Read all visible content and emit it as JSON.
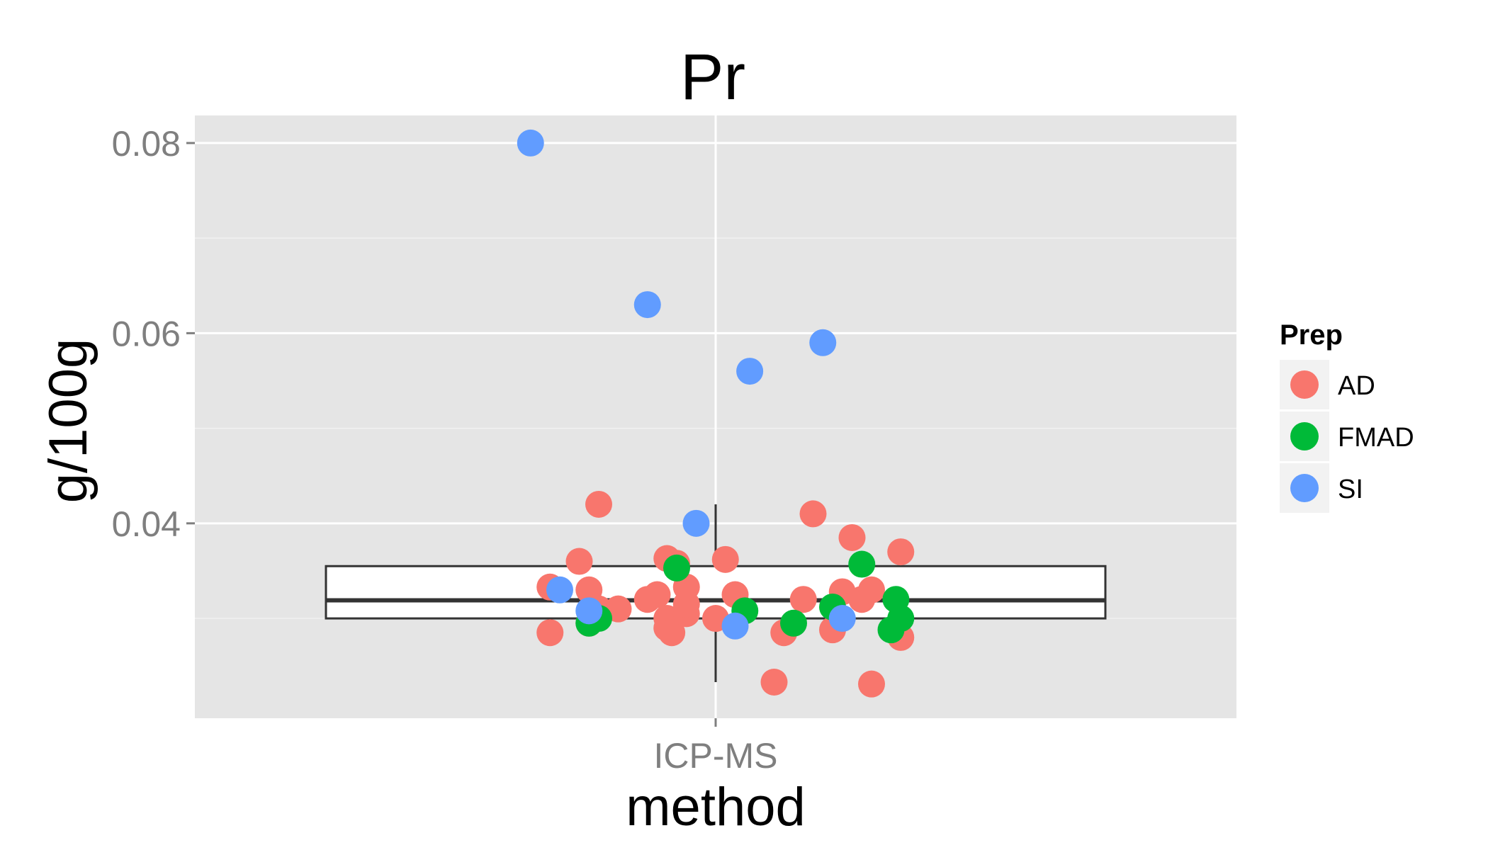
{
  "chart_data": {
    "type": "scatter",
    "title": "Pr",
    "xlabel": "method",
    "ylabel": "g/100g",
    "categories": [
      "ICP-MS"
    ],
    "ylim": [
      0.0195,
      0.0829
    ],
    "yticks": [
      0.04,
      0.06,
      0.08
    ],
    "ytick_labels": [
      "0.04",
      "0.06",
      "0.08"
    ],
    "grid": true,
    "legend": {
      "title": "Prep",
      "position": "right",
      "entries": [
        {
          "label": "AD",
          "color": "#F8766D"
        },
        {
          "label": "FMAD",
          "color": "#00BA38"
        },
        {
          "label": "SI",
          "color": "#619CFF"
        }
      ]
    },
    "boxplot": {
      "category": "ICP-MS",
      "min": 0.0233,
      "q1": 0.03,
      "median": 0.0319,
      "q3": 0.0355,
      "max": 0.042
    },
    "series": [
      {
        "name": "AD",
        "color": "#F8766D",
        "points": [
          {
            "x": -0.17,
            "y": 0.0333
          },
          {
            "x": -0.17,
            "y": 0.0285
          },
          {
            "x": -0.14,
            "y": 0.036
          },
          {
            "x": -0.13,
            "y": 0.033
          },
          {
            "x": -0.13,
            "y": 0.0295
          },
          {
            "x": -0.12,
            "y": 0.031
          },
          {
            "x": -0.12,
            "y": 0.042
          },
          {
            "x": -0.1,
            "y": 0.031
          },
          {
            "x": -0.07,
            "y": 0.032
          },
          {
            "x": -0.06,
            "y": 0.0325
          },
          {
            "x": -0.05,
            "y": 0.0363
          },
          {
            "x": -0.05,
            "y": 0.029
          },
          {
            "x": -0.04,
            "y": 0.0358
          },
          {
            "x": -0.05,
            "y": 0.03
          },
          {
            "x": -0.045,
            "y": 0.0285
          },
          {
            "x": -0.03,
            "y": 0.0305
          },
          {
            "x": -0.03,
            "y": 0.0315
          },
          {
            "x": -0.03,
            "y": 0.0333
          },
          {
            "x": 0.0,
            "y": 0.03
          },
          {
            "x": 0.01,
            "y": 0.0362
          },
          {
            "x": 0.02,
            "y": 0.0325
          },
          {
            "x": 0.06,
            "y": 0.0233
          },
          {
            "x": 0.07,
            "y": 0.0285
          },
          {
            "x": 0.09,
            "y": 0.032
          },
          {
            "x": 0.1,
            "y": 0.041
          },
          {
            "x": 0.12,
            "y": 0.0288
          },
          {
            "x": 0.13,
            "y": 0.0328
          },
          {
            "x": 0.14,
            "y": 0.0385
          },
          {
            "x": 0.15,
            "y": 0.032
          },
          {
            "x": 0.16,
            "y": 0.033
          },
          {
            "x": 0.16,
            "y": 0.0231
          },
          {
            "x": 0.19,
            "y": 0.037
          },
          {
            "x": 0.19,
            "y": 0.028
          }
        ]
      },
      {
        "name": "FMAD",
        "color": "#00BA38",
        "points": [
          {
            "x": -0.13,
            "y": 0.0295
          },
          {
            "x": -0.12,
            "y": 0.03
          },
          {
            "x": -0.04,
            "y": 0.0353
          },
          {
            "x": 0.03,
            "y": 0.0308
          },
          {
            "x": 0.08,
            "y": 0.0295
          },
          {
            "x": 0.12,
            "y": 0.0312
          },
          {
            "x": 0.15,
            "y": 0.0357
          },
          {
            "x": 0.18,
            "y": 0.0288
          },
          {
            "x": 0.185,
            "y": 0.032
          },
          {
            "x": 0.19,
            "y": 0.03
          }
        ]
      },
      {
        "name": "SI",
        "color": "#619CFF",
        "points": [
          {
            "x": -0.19,
            "y": 0.08
          },
          {
            "x": -0.16,
            "y": 0.033
          },
          {
            "x": -0.13,
            "y": 0.0308
          },
          {
            "x": -0.07,
            "y": 0.063
          },
          {
            "x": -0.02,
            "y": 0.04
          },
          {
            "x": 0.02,
            "y": 0.0292
          },
          {
            "x": 0.035,
            "y": 0.056
          },
          {
            "x": 0.11,
            "y": 0.059
          },
          {
            "x": 0.13,
            "y": 0.03
          }
        ]
      }
    ]
  }
}
